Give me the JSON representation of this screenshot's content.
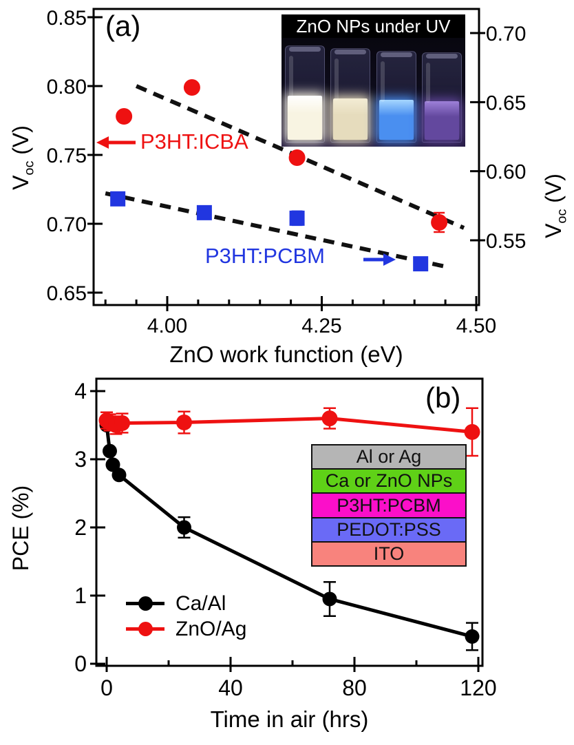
{
  "chart_data": [
    {
      "type": "scatter",
      "panel_label": "(a)",
      "xlabel": "ZnO work function (eV)",
      "ylabel_left": {
        "pre": "V",
        "sub": "oc",
        "post": " (V)"
      },
      "ylabel_right": {
        "pre": "V",
        "sub": "oc",
        "post": " (V)"
      },
      "xlim": [
        3.88,
        4.505
      ],
      "ylim_left": [
        0.641,
        0.856
      ],
      "ylim_right": [
        0.503,
        0.717
      ],
      "grid": false,
      "x_ticks": [
        {
          "v": 4.0,
          "label": "4.00"
        },
        {
          "v": 4.25,
          "label": "4.25"
        },
        {
          "v": 4.5,
          "label": "4.50"
        }
      ],
      "x_minor_ticks": [
        3.9,
        3.95,
        4.05,
        4.1,
        4.15,
        4.2,
        4.3,
        4.35,
        4.4,
        4.45
      ],
      "y_left_ticks": [
        {
          "v": 0.85,
          "label": "0.85"
        },
        {
          "v": 0.8,
          "label": "0.80"
        },
        {
          "v": 0.75,
          "label": "0.75"
        },
        {
          "v": 0.7,
          "label": "0.70"
        },
        {
          "v": 0.65,
          "label": "0.65"
        }
      ],
      "y_right_ticks": [
        {
          "v": 0.7,
          "label": "0.70"
        },
        {
          "v": 0.65,
          "label": "0.65"
        },
        {
          "v": 0.6,
          "label": "0.60"
        },
        {
          "v": 0.55,
          "label": "0.55"
        }
      ],
      "trend_color": "#111111",
      "series": [
        {
          "name": "P3HT:ICBA",
          "axis": "left",
          "marker": "circle",
          "color": "#ee1111",
          "points": [
            {
              "x": 3.93,
              "y": 0.778
            },
            {
              "x": 4.04,
              "y": 0.799
            },
            {
              "x": 4.21,
              "y": 0.748
            },
            {
              "x": 4.44,
              "y": 0.701,
              "err": 0.007
            }
          ],
          "trend": {
            "x1": 3.95,
            "y1": 0.8,
            "x2": 4.48,
            "y2": 0.697
          }
        },
        {
          "name": "P3HT:PCBM",
          "axis": "right",
          "marker": "square",
          "color": "#2136e0",
          "points": [
            {
              "x": 3.92,
              "y": 0.58
            },
            {
              "x": 4.06,
              "y": 0.57
            },
            {
              "x": 4.21,
              "y": 0.566,
              "err": 0.005
            },
            {
              "x": 4.41,
              "y": 0.533,
              "err": 0.004
            }
          ],
          "trend": {
            "x1": 3.9,
            "y1": 0.584,
            "x2": 4.45,
            "y2": 0.531
          }
        }
      ],
      "inset": {
        "title": "ZnO NPs under UV",
        "vials": [
          {
            "name": "white-glow-vial",
            "top": "#ffffff",
            "body": "#f8f4e2"
          },
          {
            "name": "cream-glow-vial",
            "top": "#f3ecd4",
            "body": "#e6dcbd"
          },
          {
            "name": "blue-glow-vial",
            "top": "#a6d6ff",
            "body": "#4a8ff0"
          },
          {
            "name": "violet-glow-vial",
            "top": "#9d80d8",
            "body": "#63489e"
          }
        ]
      }
    },
    {
      "type": "line",
      "panel_label": "(b)",
      "xlabel": "Time in air (hrs)",
      "ylabel": "PCE (%)",
      "xlim": [
        -3.3,
        121.3
      ],
      "ylim": [
        -0.03,
        4.18
      ],
      "grid": false,
      "legend_position": "lower-left",
      "x_ticks": [
        {
          "v": 0,
          "label": "0"
        },
        {
          "v": 40,
          "label": "40"
        },
        {
          "v": 80,
          "label": "80"
        },
        {
          "v": 120,
          "label": "120"
        }
      ],
      "x_minor_ticks": [
        20,
        60,
        100
      ],
      "y_ticks": [
        {
          "v": 0,
          "label": "0"
        },
        {
          "v": 1,
          "label": "1"
        },
        {
          "v": 2,
          "label": "2"
        },
        {
          "v": 3,
          "label": "3"
        },
        {
          "v": 4,
          "label": "4"
        }
      ],
      "series": [
        {
          "name": "Ca/Al",
          "color": "#000000",
          "marker": "circle",
          "points": [
            {
              "x": 0,
              "y": 3.5
            },
            {
              "x": 1,
              "y": 3.12
            },
            {
              "x": 2,
              "y": 2.92
            },
            {
              "x": 4,
              "y": 2.77
            },
            {
              "x": 25,
              "y": 2.0,
              "err": 0.15
            },
            {
              "x": 72,
              "y": 0.95,
              "err": 0.25
            },
            {
              "x": 118,
              "y": 0.4,
              "err": 0.2
            }
          ]
        },
        {
          "name": "ZnO/Ag",
          "color": "#ee1111",
          "marker": "circle",
          "points": [
            {
              "x": 0,
              "y": 3.57,
              "err": 0.12
            },
            {
              "x": 1,
              "y": 3.54,
              "err": 0.12
            },
            {
              "x": 3,
              "y": 3.5,
              "err": 0.13
            },
            {
              "x": 5,
              "y": 3.53,
              "err": 0.14
            },
            {
              "x": 25,
              "y": 3.54,
              "err": 0.16
            },
            {
              "x": 72,
              "y": 3.6,
              "err": 0.15
            },
            {
              "x": 118,
              "y": 3.4,
              "err": 0.35
            }
          ]
        }
      ],
      "inset_stack": [
        {
          "label": "Al or Ag",
          "color": "#b5b5b5"
        },
        {
          "label": "Ca or ZnO NPs",
          "color": "#5fd117"
        },
        {
          "label": "P3HT:PCBM",
          "color": "#fb0fc9"
        },
        {
          "label": "PEDOT:PSS",
          "color": "#6a6af6"
        },
        {
          "label": "ITO",
          "color": "#f8837d"
        }
      ]
    }
  ]
}
